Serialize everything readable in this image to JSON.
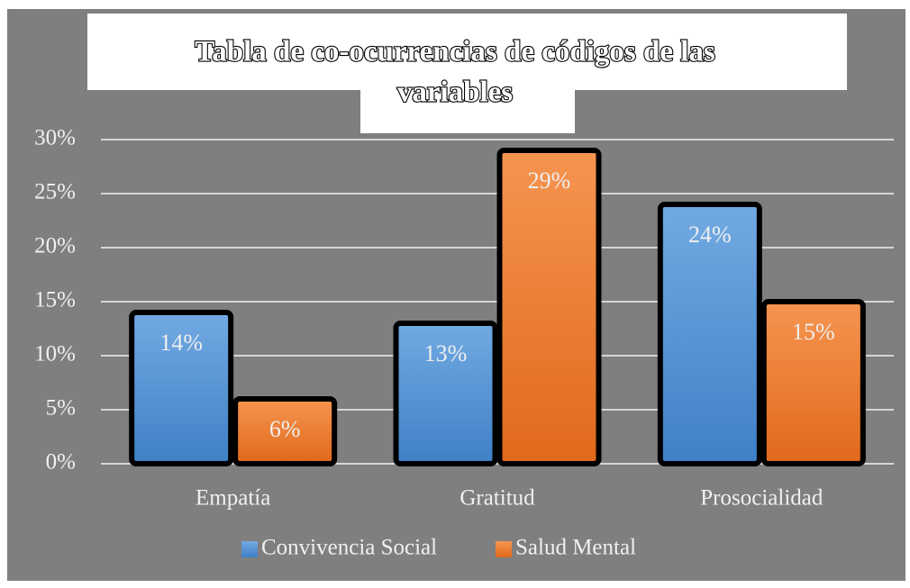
{
  "chart_data": {
    "type": "bar",
    "title_lines": [
      "Tabla de co-ocurrencias de códigos de las",
      "variables"
    ],
    "categories": [
      "Empatía",
      "Gratitud",
      "Prosocialidad"
    ],
    "series": [
      {
        "name": "Convivencia Social",
        "color": "#5b9bd5",
        "values": [
          14,
          13,
          24
        ],
        "value_labels": [
          "14%",
          "13%",
          "24%"
        ]
      },
      {
        "name": "Salud Mental",
        "color": "#ed7d31",
        "values": [
          6,
          29,
          15
        ],
        "value_labels": [
          "6%",
          "29%",
          "15%"
        ]
      }
    ],
    "ylim": [
      0,
      30
    ],
    "yticks": [
      {
        "value": 0,
        "label": "0%"
      },
      {
        "value": 5,
        "label": "5%"
      },
      {
        "value": 10,
        "label": "10%"
      },
      {
        "value": 15,
        "label": "15%"
      },
      {
        "value": 20,
        "label": "20%"
      },
      {
        "value": 25,
        "label": "25%"
      },
      {
        "value": 30,
        "label": "30%"
      }
    ],
    "grid": true
  }
}
